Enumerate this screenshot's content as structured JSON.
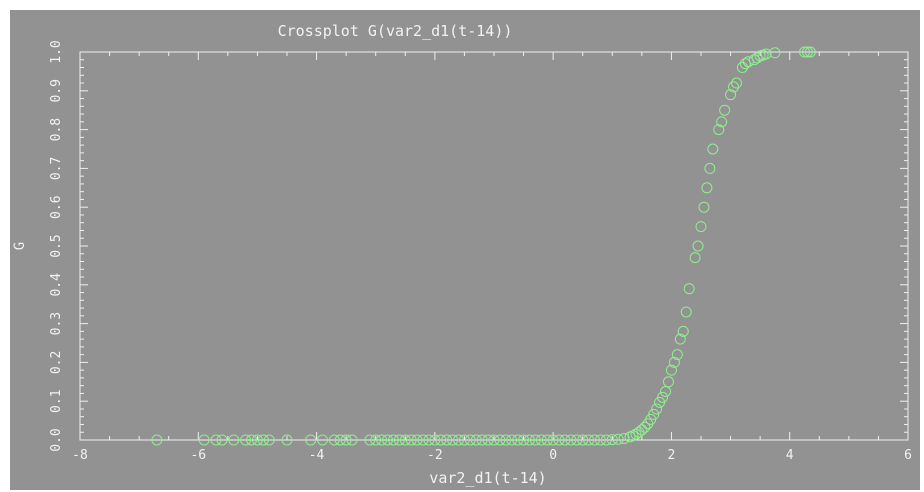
{
  "chart_data": {
    "type": "scatter",
    "title": "Crossplot G(var2_d1(t-14))",
    "xlabel": "var2_d1(t-14)",
    "ylabel": "G",
    "xlim": [
      -8,
      6
    ],
    "ylim": [
      0,
      1
    ],
    "xticks": [
      -8,
      -6,
      -4,
      -2,
      0,
      2,
      4,
      6
    ],
    "yticks": [
      0.0,
      0.1,
      0.2,
      0.3,
      0.4,
      0.5,
      0.6,
      0.7,
      0.8,
      0.9,
      1.0
    ],
    "xtick_labels": [
      "-8",
      "-6",
      "-4",
      "-2",
      "0",
      "2",
      "4",
      "6"
    ],
    "ytick_labels": [
      "0.0",
      "0.1",
      "0.2",
      "0.3",
      "0.4",
      "0.5",
      "0.6",
      "0.7",
      "0.8",
      "0.9",
      "1.0"
    ],
    "colors": {
      "background": "#929292",
      "axes": "#f0f0f0",
      "marker": "#90ee90",
      "text": "#f2f2f2"
    },
    "grid": false,
    "marker": "open-circle",
    "series": [
      {
        "x": [
          -6.7,
          -5.9,
          -5.7,
          -5.6,
          -5.4,
          -5.2,
          -5.1,
          -5.0,
          -4.9,
          -4.8,
          -4.5,
          -4.1,
          -3.9,
          -3.7,
          -3.6,
          -3.5,
          -3.4,
          -3.1,
          -3.0,
          -2.9,
          -2.8,
          -2.7,
          -2.6,
          -2.5,
          -2.4,
          -2.3,
          -2.2,
          -2.1,
          -2.0,
          -1.9,
          -1.8,
          -1.7,
          -1.6,
          -1.5,
          -1.4,
          -1.3,
          -1.2,
          -1.1,
          -1.0,
          -0.9,
          -0.8,
          -0.7,
          -0.6,
          -0.5,
          -0.4,
          -0.3,
          -0.2,
          -0.1,
          0.0,
          0.1,
          0.2,
          0.3,
          0.4,
          0.5,
          0.6,
          0.7,
          0.8,
          0.9,
          1.0,
          1.1,
          1.2,
          1.3,
          1.35,
          1.4,
          1.45,
          1.5,
          1.55,
          1.6,
          1.65,
          1.7,
          1.75,
          1.8,
          1.85,
          1.9,
          1.95,
          2.0,
          2.05,
          2.1,
          2.15,
          2.2,
          2.25,
          2.3,
          2.4,
          2.45,
          2.5,
          2.55,
          2.6,
          2.65,
          2.7,
          2.8,
          2.85,
          2.9,
          3.0,
          3.05,
          3.1,
          3.2,
          3.25,
          3.3,
          3.4,
          3.45,
          3.5,
          3.55,
          3.6,
          3.75,
          4.25,
          4.3,
          4.35
        ],
        "y": [
          0.0,
          0.0,
          0.0,
          0.0,
          0.0,
          0.0,
          0.0,
          0.0,
          0.0,
          0.0,
          0.0,
          0.0,
          0.0,
          0.0,
          0.0,
          0.0,
          0.0,
          0.0,
          0.0,
          0.0,
          0.0,
          0.0,
          0.0,
          0.0,
          0.0,
          0.0,
          0.0,
          0.0,
          0.0,
          0.0,
          0.0,
          0.0,
          0.0,
          0.0,
          0.0,
          0.0,
          0.0,
          0.0,
          0.0,
          0.0,
          0.0,
          0.0,
          0.0,
          0.0,
          0.0,
          0.0,
          0.0,
          0.0,
          0.0,
          0.0,
          0.0,
          0.0,
          0.0,
          0.0,
          0.0,
          0.0,
          0.0,
          0.0,
          0.001,
          0.002,
          0.004,
          0.008,
          0.011,
          0.015,
          0.02,
          0.026,
          0.033,
          0.042,
          0.053,
          0.066,
          0.08,
          0.097,
          0.11,
          0.125,
          0.15,
          0.18,
          0.2,
          0.22,
          0.26,
          0.28,
          0.33,
          0.39,
          0.47,
          0.5,
          0.55,
          0.6,
          0.65,
          0.7,
          0.75,
          0.8,
          0.82,
          0.85,
          0.89,
          0.91,
          0.92,
          0.96,
          0.97,
          0.975,
          0.98,
          0.985,
          0.99,
          0.992,
          0.995,
          0.998,
          1.0,
          1.0,
          1.0
        ]
      }
    ]
  }
}
